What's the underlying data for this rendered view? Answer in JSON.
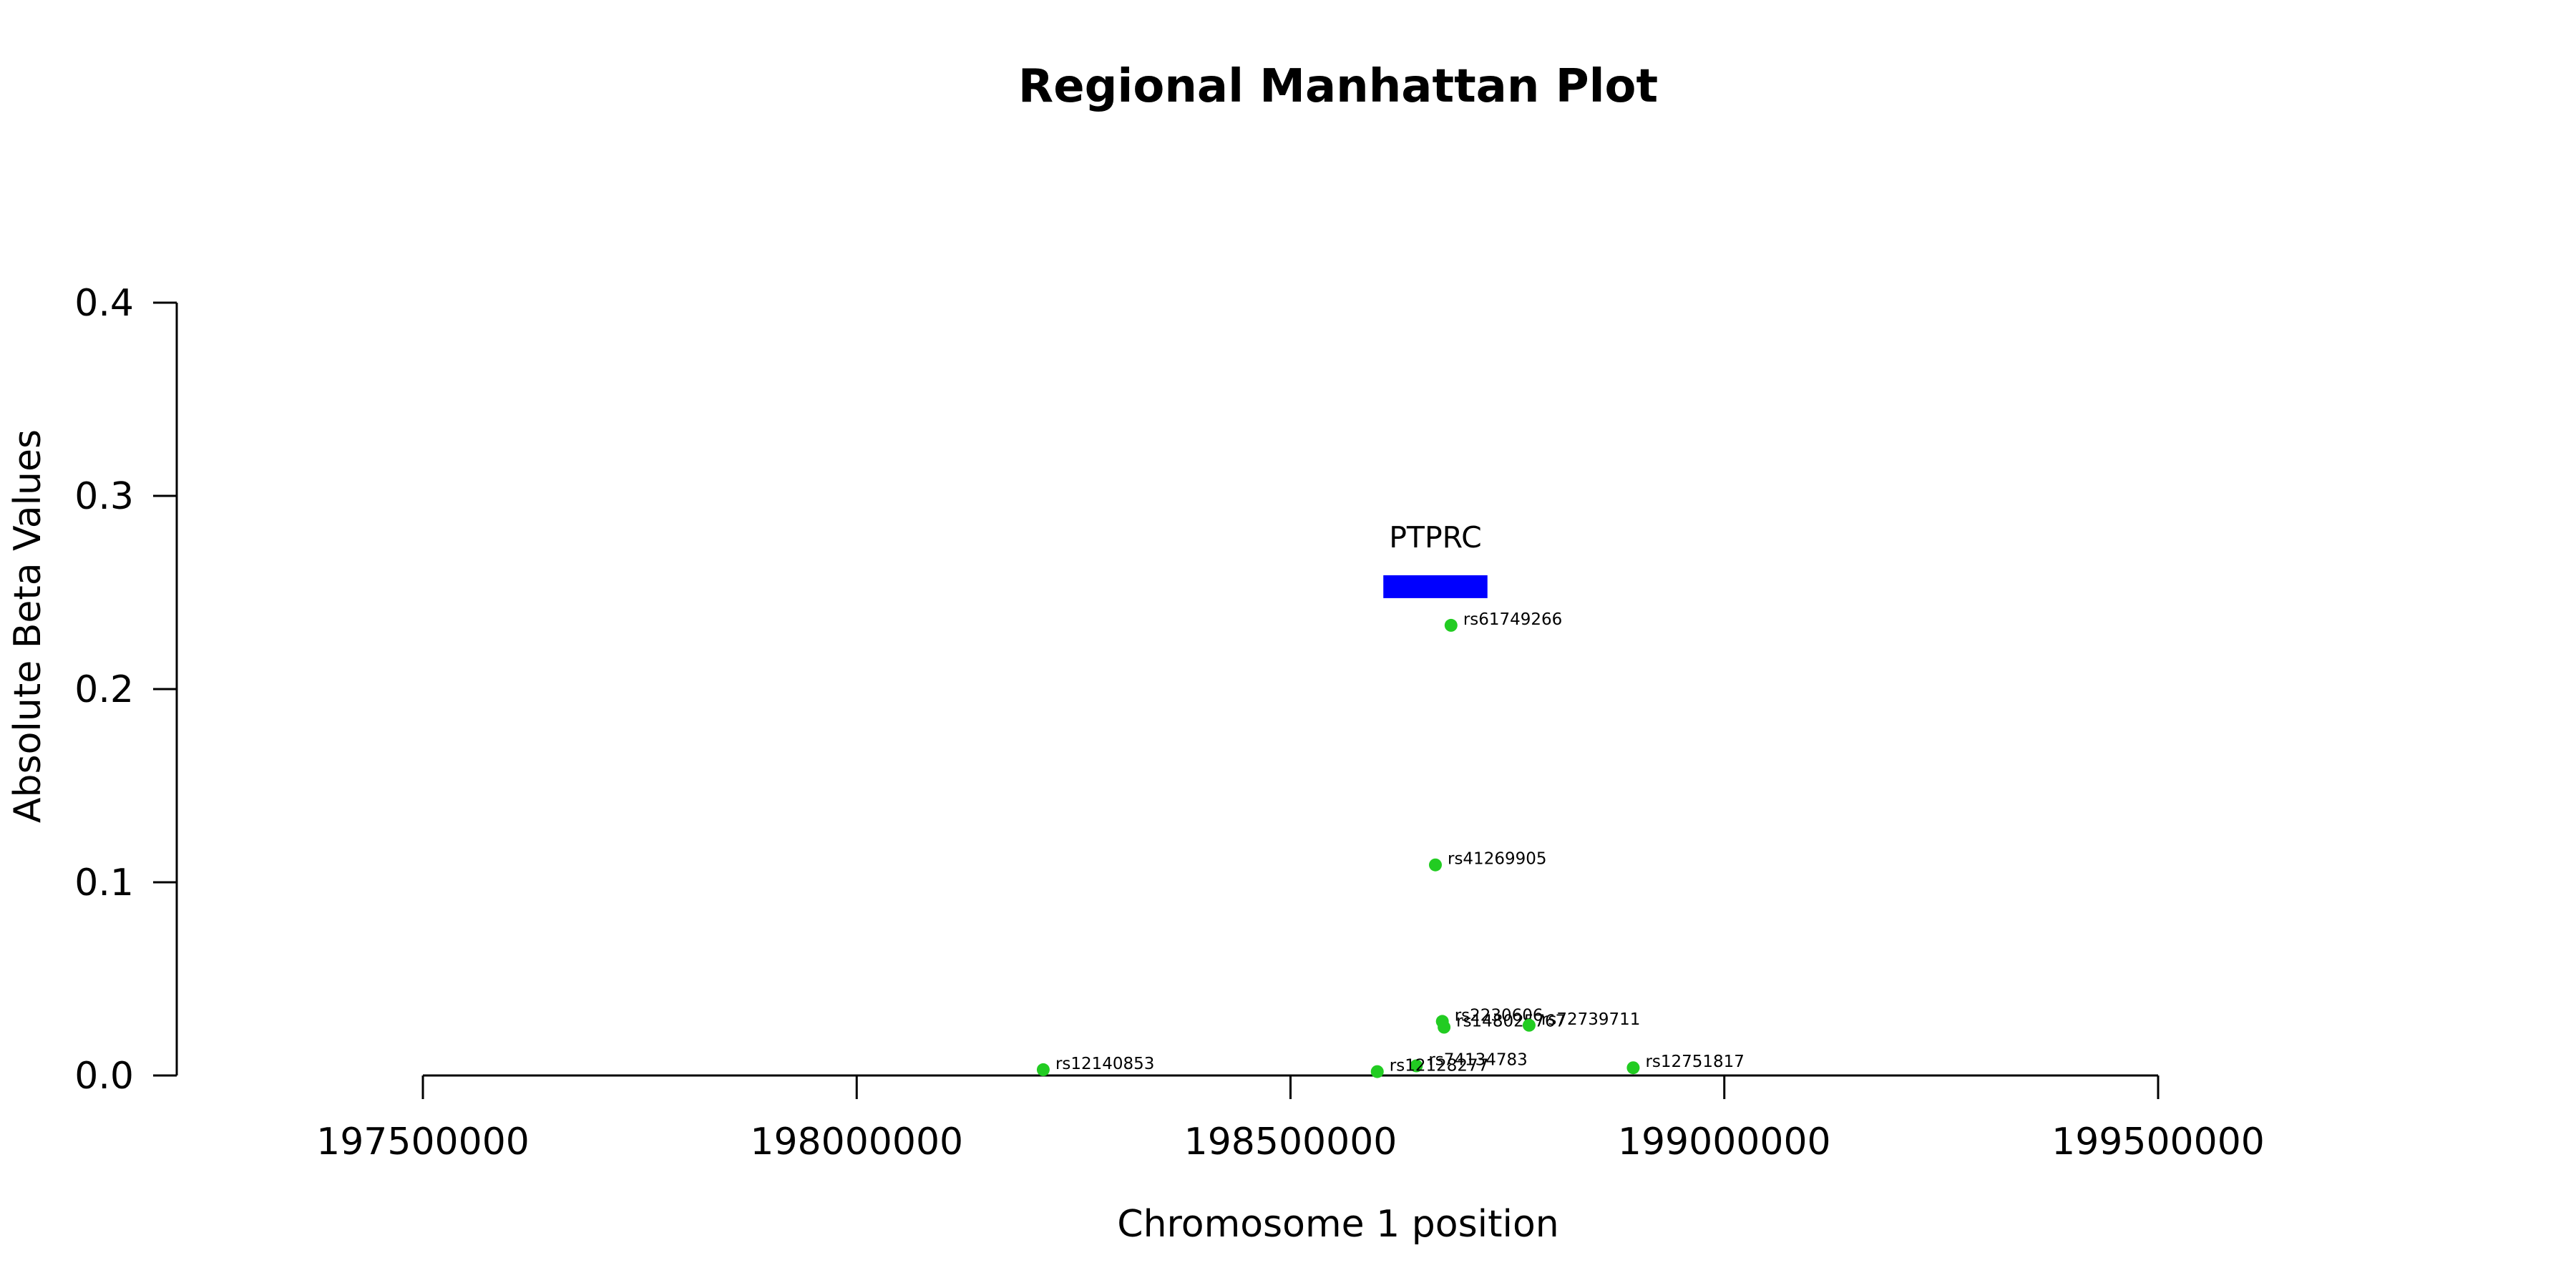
{
  "chart_data": {
    "type": "scatter",
    "title": "Regional Manhattan Plot",
    "xlabel": "Chromosome 1 position",
    "ylabel": "Absolute Beta Values",
    "xlim": [
      197500000,
      199500000
    ],
    "ylim": [
      0,
      0.4
    ],
    "x_ticks": [
      197500000,
      198000000,
      198500000,
      199000000,
      199500000
    ],
    "y_ticks": [
      0.0,
      0.1,
      0.2,
      0.3,
      0.4
    ],
    "x_tick_labels": [
      "197500000",
      "198000000",
      "198500000",
      "199000000",
      "199500000"
    ],
    "y_tick_labels": [
      "0.0",
      "0.1",
      "0.2",
      "0.3",
      "0.4"
    ],
    "point_color": "#22cc22",
    "points": [
      {
        "label": "rs61749266",
        "x": 198685000,
        "y": 0.233
      },
      {
        "label": "rs41269905",
        "x": 198667000,
        "y": 0.109
      },
      {
        "label": "rs2230606",
        "x": 198675000,
        "y": 0.028
      },
      {
        "label": "rs148025767",
        "x": 198677000,
        "y": 0.025
      },
      {
        "label": "rs72739711",
        "x": 198775000,
        "y": 0.026
      },
      {
        "label": "rs74134783",
        "x": 198645000,
        "y": 0.005
      },
      {
        "label": "rs12128277",
        "x": 198600000,
        "y": 0.002
      },
      {
        "label": "rs12140853",
        "x": 198215000,
        "y": 0.003
      },
      {
        "label": "rs12751817",
        "x": 198895000,
        "y": 0.004
      }
    ],
    "gene": {
      "name": "PTPRC",
      "start": 198607000,
      "end": 198727000,
      "y": 0.253,
      "color": "#0000ff"
    }
  }
}
